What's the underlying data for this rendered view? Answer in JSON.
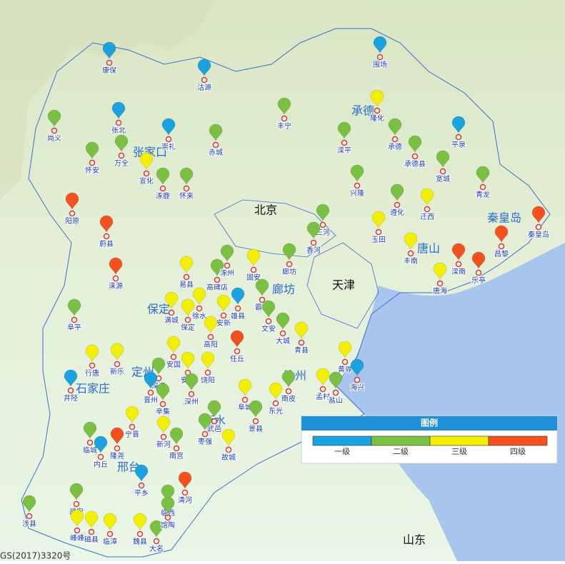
{
  "map": {
    "regions": [
      "北京",
      "天津",
      "山东",
      "承德",
      "张家口",
      "秦皇岛",
      "唐山",
      "廊坊",
      "保定",
      "定州",
      "沧州",
      "石家庄",
      "衡水",
      "邢台"
    ],
    "footer": "GS(2017)3320号",
    "legend": {
      "title": "图例",
      "items": [
        {
          "label": "一级",
          "color": "#1aa3e0"
        },
        {
          "label": "二级",
          "color": "#7ac143"
        },
        {
          "label": "三级",
          "color": "#f2ef00"
        },
        {
          "label": "四级",
          "color": "#f4511e"
        }
      ]
    },
    "pins": [
      {
        "name": "康保",
        "level": "一级"
      },
      {
        "name": "沽源",
        "level": "一级"
      },
      {
        "name": "围场",
        "level": "一级"
      },
      {
        "name": "尚义",
        "level": "二级"
      },
      {
        "name": "张北",
        "level": "一级"
      },
      {
        "name": "丰宁",
        "level": "二级"
      },
      {
        "name": "隆化",
        "level": "三级"
      },
      {
        "name": "平泉",
        "level": "一级"
      },
      {
        "name": "崇礼",
        "level": "一级"
      },
      {
        "name": "赤城",
        "level": "二级"
      },
      {
        "name": "滦平",
        "level": "二级"
      },
      {
        "name": "承德",
        "level": "二级"
      },
      {
        "name": "承德县",
        "level": "二级"
      },
      {
        "name": "怀安",
        "level": "二级"
      },
      {
        "name": "万全",
        "level": "二级"
      },
      {
        "name": "宣化",
        "level": "三级"
      },
      {
        "name": "涿鹿",
        "level": "二级"
      },
      {
        "name": "怀来",
        "level": "二级"
      },
      {
        "name": "宽城",
        "level": "二级"
      },
      {
        "name": "兴隆",
        "level": "二级"
      },
      {
        "name": "青龙",
        "level": "二级"
      },
      {
        "name": "阳原",
        "level": "四级"
      },
      {
        "name": "遵化",
        "level": "二级"
      },
      {
        "name": "迁西",
        "level": "三级"
      },
      {
        "name": "蔚县",
        "level": "四级"
      },
      {
        "name": "玉田",
        "level": "三级"
      },
      {
        "name": "丰南",
        "level": "三级"
      },
      {
        "name": "滦南",
        "level": "四级"
      },
      {
        "name": "昌黎",
        "level": "四级"
      },
      {
        "name": "秦皇岛",
        "level": "四级"
      },
      {
        "name": "乐亭",
        "level": "四级"
      },
      {
        "name": "唐海",
        "level": "三级"
      },
      {
        "name": "三河",
        "level": "二级"
      },
      {
        "name": "香河",
        "level": "二级"
      },
      {
        "name": "涞源",
        "level": "四级"
      },
      {
        "name": "易县",
        "level": "三级"
      },
      {
        "name": "高碑店",
        "level": "二级"
      },
      {
        "name": "涿州",
        "level": "二级"
      },
      {
        "name": "固安",
        "level": "三级"
      },
      {
        "name": "廊坊",
        "level": "二级"
      },
      {
        "name": "霸州",
        "level": "二级"
      },
      {
        "name": "阜平",
        "level": "二级"
      },
      {
        "name": "满城",
        "level": "三级"
      },
      {
        "name": "保定",
        "level": "三级"
      },
      {
        "name": "徐水",
        "level": "三级"
      },
      {
        "name": "安新",
        "level": "三级"
      },
      {
        "name": "雄县",
        "level": "一级"
      },
      {
        "name": "文安",
        "level": "二级"
      },
      {
        "name": "大城",
        "level": "二级"
      },
      {
        "name": "青县",
        "level": "三级"
      },
      {
        "name": "高阳",
        "level": "三级"
      },
      {
        "name": "任丘",
        "level": "四级"
      },
      {
        "name": "黄骅",
        "level": "三级"
      },
      {
        "name": "海兴",
        "level": "一级"
      },
      {
        "name": "孟村",
        "level": "三级"
      },
      {
        "name": "盐山",
        "level": "二级"
      },
      {
        "name": "南皮",
        "level": "二级"
      },
      {
        "name": "东光",
        "level": "三级"
      },
      {
        "name": "井陉",
        "level": "一级"
      },
      {
        "name": "行唐",
        "level": "三级"
      },
      {
        "name": "新乐",
        "level": "三级"
      },
      {
        "name": "安国",
        "level": "三级"
      },
      {
        "name": "深泽",
        "level": "二级"
      },
      {
        "name": "安平",
        "level": "三级"
      },
      {
        "name": "饶阳",
        "level": "三级"
      },
      {
        "name": "深州",
        "level": "二级"
      },
      {
        "name": "晋州",
        "level": "一级"
      },
      {
        "name": "辛集",
        "level": "二级"
      },
      {
        "name": "武邑",
        "level": "二级"
      },
      {
        "name": "阜城",
        "level": "三级"
      },
      {
        "name": "景县",
        "level": "二级"
      },
      {
        "name": "枣强",
        "level": "二级"
      },
      {
        "name": "新河",
        "level": "三级"
      },
      {
        "name": "临城",
        "level": "二级"
      },
      {
        "name": "内丘",
        "level": "一级"
      },
      {
        "name": "隆尧",
        "level": "四级"
      },
      {
        "name": "南宫",
        "level": "二级"
      },
      {
        "name": "故城",
        "level": "三级"
      },
      {
        "name": "清河",
        "level": "四级"
      },
      {
        "name": "武安",
        "level": "二级"
      },
      {
        "name": "涉县",
        "level": "二级"
      },
      {
        "name": "临西",
        "level": "二级"
      },
      {
        "name": "峰峰",
        "level": "三级"
      },
      {
        "name": "磁县",
        "level": "三级"
      },
      {
        "name": "临漳",
        "level": "三级"
      },
      {
        "name": "魏县",
        "level": "三级"
      },
      {
        "name": "大名",
        "level": "二级"
      },
      {
        "name": "馆陶",
        "level": "二级"
      },
      {
        "name": "平乡",
        "level": "一级"
      },
      {
        "name": "宁晋",
        "level": "三级"
      }
    ]
  }
}
